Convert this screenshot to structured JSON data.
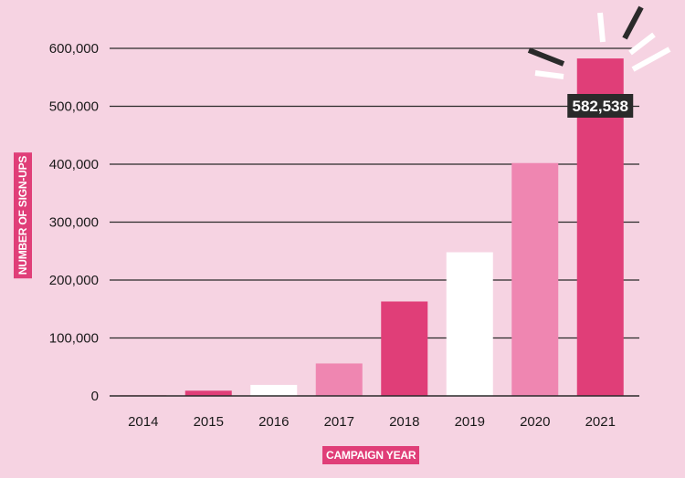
{
  "chart_data": {
    "type": "bar",
    "categories": [
      "2014",
      "2015",
      "2016",
      "2017",
      "2018",
      "2019",
      "2020",
      "2021"
    ],
    "values": [
      1000,
      9000,
      19000,
      56000,
      163000,
      248000,
      402000,
      582538
    ],
    "bar_colors": [
      "#e03e78",
      "#e03e78",
      "#ffffff",
      "#ef86b1",
      "#e03e78",
      "#ffffff",
      "#ef86b1",
      "#e03e78"
    ],
    "xlabel": "CAMPAIGN YEAR",
    "ylabel": "NUMBER OF SIGN-UPS",
    "ylim": [
      0,
      600000
    ],
    "yticks": [
      0,
      100000,
      200000,
      300000,
      400000,
      500000,
      600000
    ],
    "ytick_labels": [
      "0",
      "100,000",
      "200,000",
      "300,000",
      "400,000",
      "500,000",
      "600,000"
    ],
    "grid": true,
    "annotations": [
      {
        "category": "2021",
        "text": "582,538"
      }
    ]
  },
  "colors": {
    "background": "#f6d3e2",
    "accent": "#e03e78",
    "light_pink": "#ef86b1",
    "white": "#ffffff",
    "annotation_bg": "#2a2a2a",
    "grid": "#2a2a2a"
  }
}
